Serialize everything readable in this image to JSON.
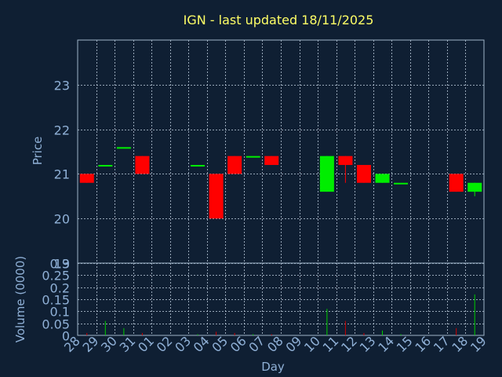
{
  "colors": {
    "background": "#0f1f33",
    "frame": "#9fb4c8",
    "grid": "#b8c8d8",
    "title": "#ffff66",
    "axis_text": "#8fb0d6",
    "up": "#00ee00",
    "down": "#ff0000",
    "vol_up": "#00cc00",
    "vol_down": "#cc0000"
  },
  "chart_data": [
    {
      "type": "candlestick",
      "title": "IGN - last updated 18/11/2025",
      "xlabel": "Day",
      "ylabel": "Price",
      "ylim": [
        19,
        24
      ],
      "yticks": [
        "19",
        "20",
        "21",
        "22",
        "23"
      ],
      "grid": true,
      "xticks": [
        "28",
        "29",
        "30",
        "31",
        "01",
        "02",
        "03",
        "04",
        "05",
        "06",
        "07",
        "08",
        "09",
        "10",
        "11",
        "12",
        "13",
        "14",
        "15",
        "16",
        "17",
        "18",
        "19"
      ],
      "candles": [
        {
          "x": 0,
          "open": 21.0,
          "close": 20.8,
          "high": 21.0,
          "low": 20.8
        },
        {
          "x": 1,
          "open": 21.2,
          "close": 21.2,
          "high": 21.2,
          "low": 21.2
        },
        {
          "x": 2,
          "open": 21.6,
          "close": 21.6,
          "high": 21.6,
          "low": 21.6
        },
        {
          "x": 3,
          "open": 21.4,
          "close": 21.0,
          "high": 21.4,
          "low": 21.0
        },
        {
          "x": 6,
          "open": 21.2,
          "close": 21.2,
          "high": 21.2,
          "low": 21.2
        },
        {
          "x": 7,
          "open": 21.0,
          "close": 20.0,
          "high": 21.0,
          "low": 20.0
        },
        {
          "x": 8,
          "open": 21.4,
          "close": 21.0,
          "high": 21.4,
          "low": 21.0
        },
        {
          "x": 9,
          "open": 21.4,
          "close": 21.4,
          "high": 21.4,
          "low": 21.4
        },
        {
          "x": 10,
          "open": 21.4,
          "close": 21.2,
          "high": 21.4,
          "low": 21.2
        },
        {
          "x": 13,
          "open": 20.6,
          "close": 21.4,
          "high": 21.4,
          "low": 20.6
        },
        {
          "x": 14,
          "open": 21.4,
          "close": 21.2,
          "high": 21.4,
          "low": 20.8
        },
        {
          "x": 15,
          "open": 21.2,
          "close": 20.8,
          "high": 21.2,
          "low": 20.8
        },
        {
          "x": 16,
          "open": 20.8,
          "close": 21.0,
          "high": 21.0,
          "low": 20.8
        },
        {
          "x": 17,
          "open": 20.8,
          "close": 20.8,
          "high": 20.8,
          "low": 20.8
        },
        {
          "x": 20,
          "open": 21.0,
          "close": 20.6,
          "high": 21.0,
          "low": 20.6
        },
        {
          "x": 21,
          "open": 20.6,
          "close": 20.8,
          "high": 20.8,
          "low": 20.5
        }
      ]
    },
    {
      "type": "bar",
      "ylabel": "Volume (0000)",
      "ylim": [
        0,
        0.3
      ],
      "yticks": [
        "0",
        "0.05",
        "0.1",
        "0.15",
        "0.2",
        "0.25",
        "0.3"
      ],
      "grid": true,
      "bars": [
        {
          "x": 0,
          "value": 0.01,
          "dir": "down"
        },
        {
          "x": 1,
          "value": 0.06,
          "dir": "up"
        },
        {
          "x": 2,
          "value": 0.03,
          "dir": "up"
        },
        {
          "x": 3,
          "value": 0.01,
          "dir": "down"
        },
        {
          "x": 6,
          "value": 0.005,
          "dir": "up"
        },
        {
          "x": 7,
          "value": 0.015,
          "dir": "down"
        },
        {
          "x": 8,
          "value": 0.01,
          "dir": "down"
        },
        {
          "x": 9,
          "value": 0.005,
          "dir": "up"
        },
        {
          "x": 10,
          "value": 0.005,
          "dir": "down"
        },
        {
          "x": 13,
          "value": 0.11,
          "dir": "up"
        },
        {
          "x": 14,
          "value": 0.06,
          "dir": "down"
        },
        {
          "x": 15,
          "value": 0.01,
          "dir": "down"
        },
        {
          "x": 16,
          "value": 0.02,
          "dir": "up"
        },
        {
          "x": 17,
          "value": 0.005,
          "dir": "up"
        },
        {
          "x": 20,
          "value": 0.03,
          "dir": "down"
        },
        {
          "x": 21,
          "value": 0.17,
          "dir": "up"
        }
      ]
    }
  ]
}
